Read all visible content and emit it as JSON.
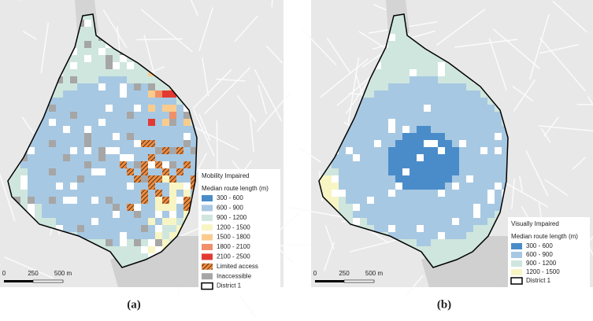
{
  "panels": [
    {
      "caption": "(a)",
      "legend": {
        "title": "Mobility Impaired",
        "subtitle": "Median route length (m)",
        "items": [
          {
            "label": "300 - 600",
            "color": "#4a8cc9"
          },
          {
            "label": "600 - 900",
            "color": "#a7c8e2"
          },
          {
            "label": "900 - 1200",
            "color": "#cfe6de"
          },
          {
            "label": "1200 - 1500",
            "color": "#f8f5c4"
          },
          {
            "label": "1500 - 1800",
            "color": "#f9cc8e"
          },
          {
            "label": "1800 - 2100",
            "color": "#f19068"
          },
          {
            "label": "2100 - 2500",
            "color": "#e23a32"
          },
          {
            "label": "Limited access",
            "color": "#f08a3c",
            "pattern": "hatch"
          },
          {
            "label": "Inaccessible",
            "color": "#a6a6a6"
          },
          {
            "label": "District 1",
            "color": "#000000",
            "outline": true
          }
        ]
      },
      "scale": [
        "0",
        "250",
        "500 m"
      ]
    },
    {
      "caption": "(b)",
      "legend": {
        "title": "Visually Impaired",
        "subtitle": "Median route length (m)",
        "items": [
          {
            "label": "300 - 600",
            "color": "#4a8cc9"
          },
          {
            "label": "600 - 900",
            "color": "#a7c8e2"
          },
          {
            "label": "900 - 1200",
            "color": "#cfe6de"
          },
          {
            "label": "1200 - 1500",
            "color": "#f8f5c4"
          },
          {
            "label": "District 1",
            "color": "#000000",
            "outline": true
          }
        ]
      },
      "scale": [
        "0",
        "250",
        "500 m"
      ]
    }
  ]
}
